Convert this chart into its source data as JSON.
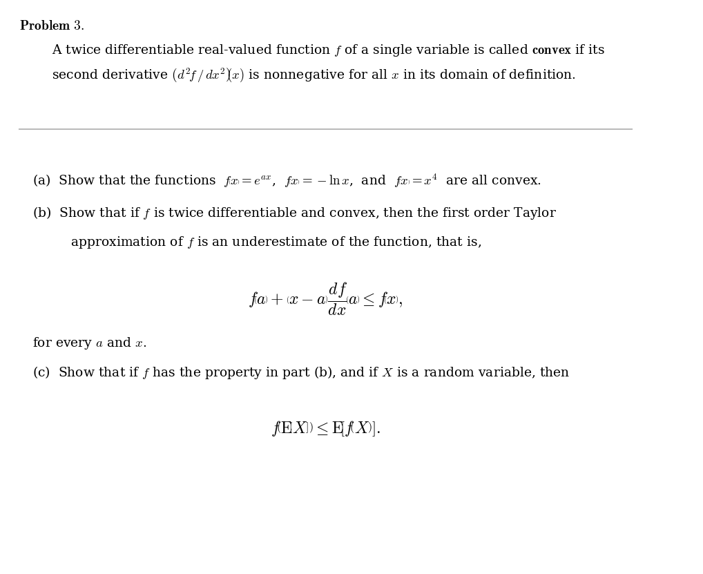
{
  "title": "Problem 3.",
  "bg_color": "#ffffff",
  "text_color": "#000000",
  "separator_color": "#aaaaaa",
  "figsize": [
    10.18,
    8.31
  ],
  "dpi": 100,
  "intro_line1": "A twice differentiable real-valued function $f$ of a single variable is called \\textbf{convex} if its",
  "intro_line2": "second derivative $\\left(d^2f / dx^2\\right)\\!(x)$ is nonnegative for all $x$ in its domain of definition.",
  "part_a": "(a)\\; Show that the functions $f\\left(x\\right) = e^{ax}$, $f\\left(x\\right) = -\\ln x$, and $f\\left(x\\right) = x^4$\\; are all convex.",
  "part_b_line1": "(b)\\; Show that if $f$ is twice differentiable and convex, then the first order Taylor",
  "part_b_line2": "\\hspace{1.5em} approximation of $f$ is an underestimate of the function, that is,",
  "part_b_formula": "$f\\!\\left(a\\right)+\\left(x-a\\right)\\dfrac{df}{dx}\\!\\left(a\\right)\\leq f\\!\\left(x\\right),$",
  "part_b_line3": "for every $a$ and $x$.",
  "part_c_line1": "(c)\\; Show that if $f$ has the property in part (b), and if $X$ is a random variable, then",
  "part_c_formula": "$f\\!\\left(\\mathrm{E}\\left[X\\right]\\right)\\leq \\mathrm{E}\\!\\left[f\\!\\left(X\\right)\\right].$"
}
